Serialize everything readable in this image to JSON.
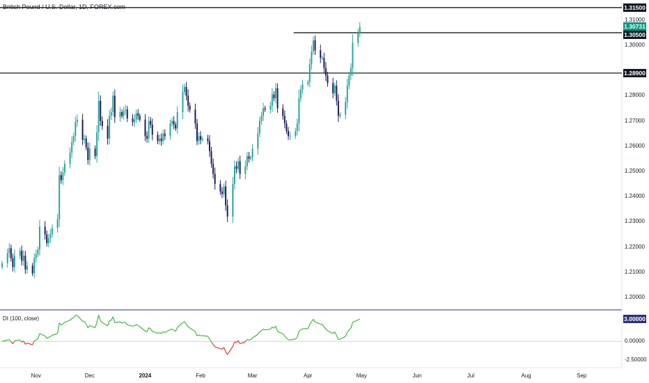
{
  "title": "British Pound / U.S. Dollar, 1D, FOREX.com",
  "indicator_title": "DI (100, close)",
  "colors": {
    "up": "#26a69a",
    "down": "#1c1a5e",
    "di_pos": "#2fb12f",
    "di_neg": "#e02b2b",
    "level": "#000000"
  },
  "price_labels": [
    {
      "value": "1.31500",
      "style": "black"
    },
    {
      "value": "1.30731",
      "style": "green"
    },
    {
      "value": "1.30500",
      "style": "black"
    },
    {
      "value": "1.28900",
      "style": "black"
    }
  ],
  "indicator_labels": [
    {
      "value": "3.00000",
      "style": "blue"
    }
  ],
  "y_ticks": [
    "1.31000",
    "1.30000",
    "1.28000",
    "1.27000",
    "1.26000",
    "1.25000",
    "1.24000",
    "1.23000",
    "1.22000",
    "1.21000",
    "1.20000"
  ],
  "indicator_ticks": [
    "0.00000",
    "-2.50000"
  ],
  "x_ticks": [
    "Nov",
    "Dec",
    "2024",
    "Feb",
    "Mar",
    "Apr",
    "May",
    "Jun",
    "Jul",
    "Aug",
    "Sep"
  ],
  "chart_data": [
    {
      "type": "candlestick",
      "title": "British Pound / U.S. Dollar, 1D, FOREX.com",
      "ylim": [
        1.195,
        1.318
      ],
      "horizontal_levels": [
        1.315,
        1.305,
        1.289
      ],
      "last_price": 1.30731,
      "start": "2023-10-13",
      "closes": [
        1.2135,
        1.2175,
        1.2195,
        1.2155,
        1.212,
        1.2165,
        1.2185,
        1.2145,
        1.2165,
        1.211,
        1.2125,
        1.2095,
        1.2155,
        1.217,
        1.219,
        1.228,
        1.225,
        1.2215,
        1.2235,
        1.225,
        1.2275,
        1.231,
        1.2485,
        1.2465,
        1.2495,
        1.253,
        1.2575,
        1.2615,
        1.264,
        1.2695,
        1.2705,
        1.2625,
        1.263,
        1.2595,
        1.2545,
        1.259,
        1.256,
        1.2655,
        1.278,
        1.27,
        1.268,
        1.263,
        1.272,
        1.2735,
        1.28,
        1.2715,
        1.2735,
        1.272,
        1.274,
        1.2745,
        1.271,
        1.2695,
        1.2705,
        1.273,
        1.272,
        1.2705,
        1.264,
        1.263,
        1.27,
        1.2685,
        1.2645,
        1.262,
        1.263,
        1.262,
        1.265,
        1.264,
        1.269,
        1.27,
        1.2685,
        1.267,
        1.2735,
        1.2815,
        1.2835,
        1.28,
        1.276,
        1.2745,
        1.269,
        1.262,
        1.264,
        1.2625,
        1.263,
        1.262,
        1.258,
        1.253,
        1.249,
        1.245,
        1.242,
        1.241,
        1.244,
        1.2365,
        1.232,
        1.245,
        1.252,
        1.251,
        1.254,
        1.249,
        1.252,
        1.256,
        1.255,
        1.2555,
        1.259,
        1.265,
        1.27,
        1.272,
        1.275,
        1.2745,
        1.276,
        1.2805,
        1.279,
        1.283,
        1.275,
        1.272,
        1.269,
        1.266,
        1.264,
        1.264,
        1.266,
        1.269,
        1.279,
        1.2825,
        1.2845,
        1.2855,
        1.2925,
        1.2975,
        1.302,
        1.298,
        1.295,
        1.295,
        1.291,
        1.288,
        1.285,
        1.281,
        1.284,
        1.278,
        1.272,
        1.2725,
        1.2775,
        1.284,
        1.288,
        1.291,
        1.301,
        1.305,
        1.3073
      ]
    },
    {
      "type": "line",
      "title": "DI (100, close)",
      "ylim": [
        -3.5,
        4.0
      ],
      "zero_line": 0,
      "last_value": 3.0
    }
  ]
}
